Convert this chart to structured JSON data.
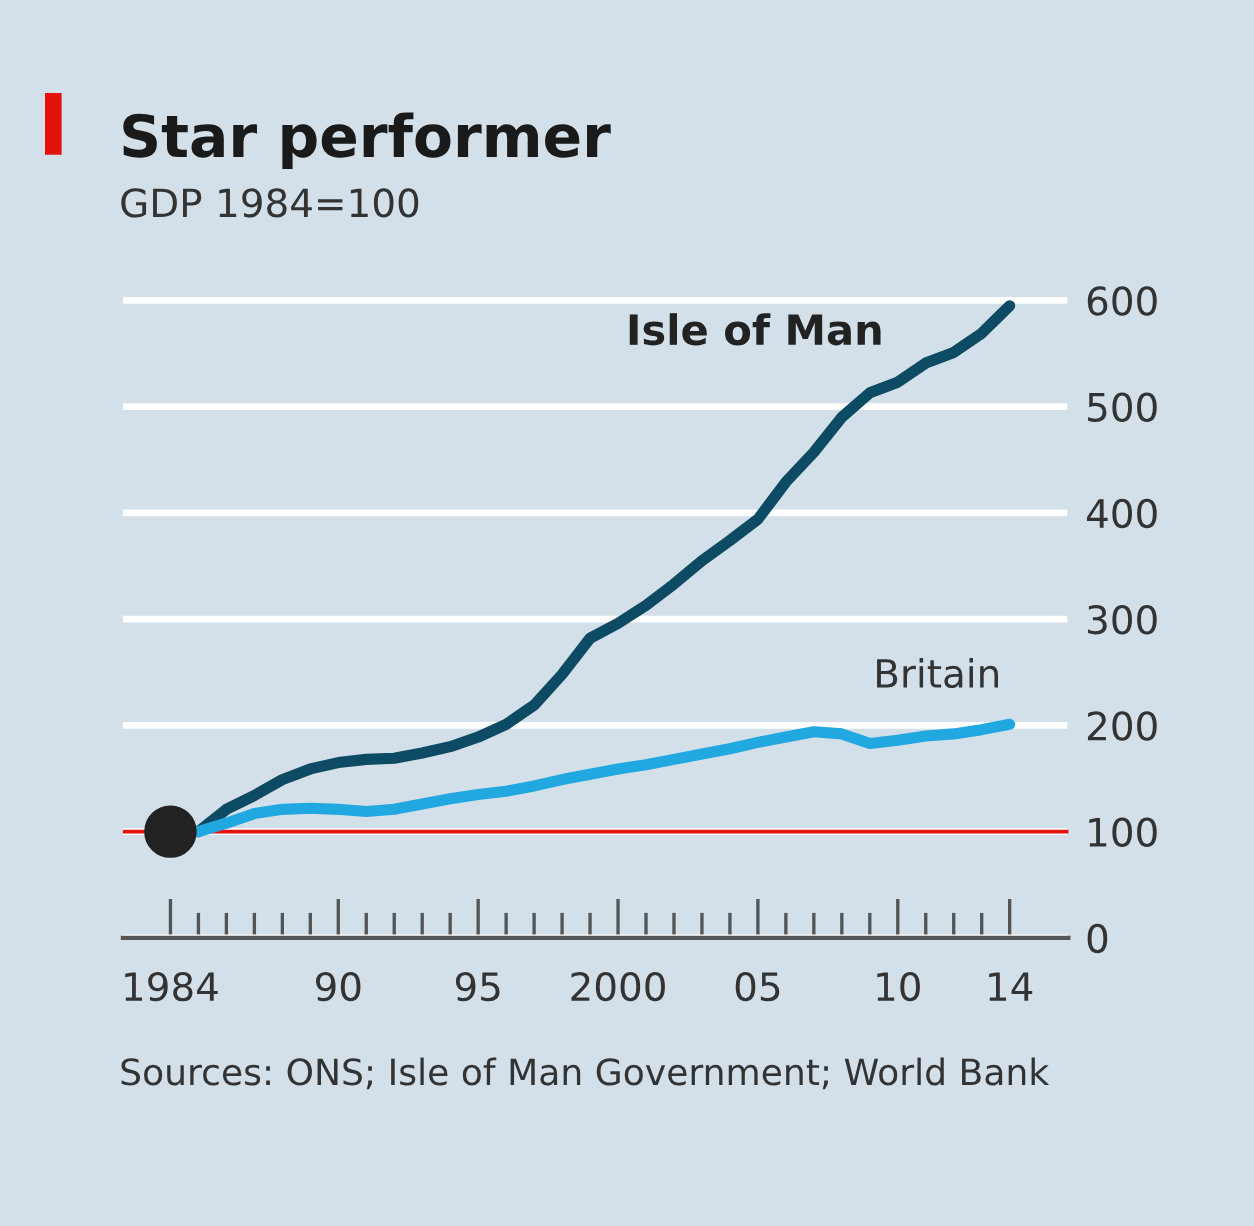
{
  "chart_data": {
    "type": "line",
    "title": "Star performer",
    "subtitle": "GDP 1984=100",
    "annotations": [
      "Sources: ONS; Isle of Man Government; World Bank"
    ],
    "series": [
      {
        "name": "Isle of Man",
        "color": "#0d4a63",
        "x": [
          1985,
          1986,
          1987,
          1988,
          1989,
          1990,
          1991,
          1992,
          1993,
          1994,
          1995,
          1996,
          1997,
          1998,
          1999,
          2000,
          2001,
          2002,
          2003,
          2004,
          2005,
          2006,
          2007,
          2008,
          2009,
          2010,
          2011,
          2012,
          2013,
          2014
        ],
        "values": [
          100,
          121,
          134,
          149,
          159,
          165,
          168,
          169,
          174,
          180,
          189,
          201,
          219,
          248,
          282,
          296,
          313,
          333,
          355,
          374,
          394,
          429,
          457,
          490,
          513,
          523,
          541,
          551,
          569,
          595
        ]
      },
      {
        "name": "Britain",
        "color": "#22a8e0",
        "x": [
          1985,
          1986,
          1987,
          1988,
          1989,
          1990,
          1991,
          1992,
          1993,
          1994,
          1995,
          1996,
          1997,
          1998,
          1999,
          2000,
          2001,
          2002,
          2003,
          2004,
          2005,
          2006,
          2007,
          2008,
          2009,
          2010,
          2011,
          2012,
          2013,
          2014
        ],
        "values": [
          100,
          108,
          117,
          121,
          122,
          121,
          119,
          121,
          126,
          131,
          135,
          138,
          143,
          149,
          154,
          159,
          163,
          168,
          173,
          178,
          184,
          189,
          194,
          192,
          183,
          186,
          190,
          192,
          196,
          201
        ]
      },
      {
        "type": "scatter",
        "color": "#222222",
        "x": [
          1984
        ],
        "values": [
          100
        ]
      }
    ],
    "xlim": [
      1982.3,
      2016.1
    ],
    "ylim": [
      0,
      630
    ],
    "xticks": [
      {
        "value": 1984,
        "label": "1984"
      },
      {
        "value": 1985,
        "label": null
      },
      {
        "value": 1986,
        "label": null
      },
      {
        "value": 1987,
        "label": null
      },
      {
        "value": 1988,
        "label": null
      },
      {
        "value": 1989,
        "label": null
      },
      {
        "value": 1990,
        "label": "90"
      },
      {
        "value": 1991,
        "label": null
      },
      {
        "value": 1992,
        "label": null
      },
      {
        "value": 1993,
        "label": null
      },
      {
        "value": 1994,
        "label": null
      },
      {
        "value": 1995,
        "label": "95"
      },
      {
        "value": 1996,
        "label": null
      },
      {
        "value": 1997,
        "label": null
      },
      {
        "value": 1998,
        "label": null
      },
      {
        "value": 1999,
        "label": null
      },
      {
        "value": 2000,
        "label": "2000"
      },
      {
        "value": 2001,
        "label": null
      },
      {
        "value": 2002,
        "label": null
      },
      {
        "value": 2003,
        "label": null
      },
      {
        "value": 2004,
        "label": null
      },
      {
        "value": 2005,
        "label": "05"
      },
      {
        "value": 2006,
        "label": null
      },
      {
        "value": 2007,
        "label": null
      },
      {
        "value": 2008,
        "label": null
      },
      {
        "value": 2009,
        "label": null
      },
      {
        "value": 2010,
        "label": "10"
      },
      {
        "value": 2011,
        "label": null
      },
      {
        "value": 2012,
        "label": null
      },
      {
        "value": 2013,
        "label": null
      },
      {
        "value": 2014,
        "label": "14"
      }
    ],
    "yticks": [
      0,
      100,
      200,
      300,
      400,
      500,
      600
    ],
    "ref_lines": [
      {
        "axis": "y",
        "value": 100,
        "color": "#e3120b"
      }
    ],
    "grid": "y",
    "legend": false
  }
}
